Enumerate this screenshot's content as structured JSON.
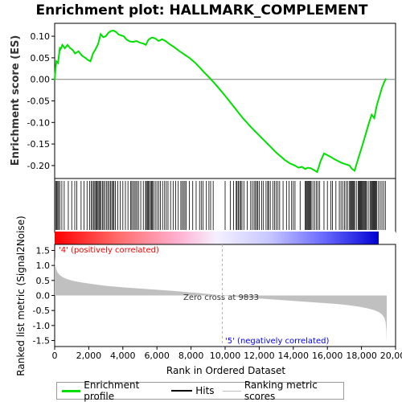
{
  "title": "Enrichment plot: HALLMARK_COMPLEMENT",
  "legend": {
    "items": [
      {
        "label": "Enrichment profile",
        "color": "#00e000"
      },
      {
        "label": "Hits",
        "color": "#000000"
      },
      {
        "label": "Ranking metric scores",
        "color": "#c0c0c0"
      }
    ]
  },
  "annotations": {
    "pos_label": "'4' (positively correlated)",
    "neg_label": "'5' (negatively correlated)",
    "zero_cross": "Zero cross at 9833",
    "pos_color": "#ff0000",
    "neg_color": "#0000ff"
  },
  "chart_data": [
    {
      "type": "line",
      "panel": "enrichment",
      "ylabel": "Enrichment score (ES)",
      "xlim": [
        0,
        20000
      ],
      "ylim": [
        -0.23,
        0.13
      ],
      "yticks": [
        "0.10",
        "0.05",
        "0.00",
        "-0.05",
        "-0.10",
        "-0.15",
        "-0.20"
      ],
      "ytick_values": [
        0.1,
        0.05,
        0.0,
        -0.05,
        -0.1,
        -0.15,
        -0.2
      ],
      "grid": false,
      "series": [
        {
          "color": "#00e000",
          "x": [
            0,
            50,
            100,
            200,
            300,
            350,
            450,
            600,
            750,
            900,
            1050,
            1200,
            1400,
            1600,
            1800,
            1950,
            2100,
            2250,
            2400,
            2550,
            2700,
            2850,
            3000,
            3150,
            3300,
            3450,
            3600,
            3750,
            3900,
            4050,
            4200,
            4400,
            4600,
            4800,
            5000,
            5200,
            5350,
            5500,
            5700,
            5900,
            6100,
            6300,
            6500,
            6700,
            7000,
            7300,
            7600,
            7900,
            8200,
            8500,
            8800,
            9100,
            9400,
            9833,
            10200,
            10600,
            11000,
            11500,
            12000,
            12500,
            13000,
            13500,
            13800,
            14100,
            14300,
            14500,
            14700,
            14850,
            15000,
            15200,
            15400,
            15600,
            15800,
            16000,
            16200,
            16400,
            16600,
            16800,
            17000,
            17150,
            17300,
            17450,
            17600,
            17800,
            18000,
            18150,
            18300,
            18450,
            18600,
            18750,
            18900,
            19050,
            19200,
            19350,
            19450
          ],
          "y": [
            -0.002,
            0.025,
            0.042,
            0.038,
            0.072,
            0.07,
            0.08,
            0.072,
            0.08,
            0.073,
            0.068,
            0.06,
            0.065,
            0.055,
            0.05,
            0.045,
            0.042,
            0.06,
            0.07,
            0.082,
            0.105,
            0.098,
            0.1,
            0.108,
            0.112,
            0.113,
            0.11,
            0.104,
            0.102,
            0.1,
            0.093,
            0.088,
            0.087,
            0.089,
            0.085,
            0.083,
            0.08,
            0.092,
            0.097,
            0.095,
            0.089,
            0.093,
            0.089,
            0.083,
            0.075,
            0.066,
            0.058,
            0.05,
            0.04,
            0.028,
            0.015,
            0.003,
            -0.01,
            -0.03,
            -0.048,
            -0.068,
            -0.088,
            -0.11,
            -0.13,
            -0.15,
            -0.17,
            -0.187,
            -0.195,
            -0.2,
            -0.205,
            -0.203,
            -0.208,
            -0.205,
            -0.206,
            -0.21,
            -0.215,
            -0.19,
            -0.172,
            -0.176,
            -0.18,
            -0.185,
            -0.189,
            -0.193,
            -0.196,
            -0.198,
            -0.2,
            -0.208,
            -0.212,
            -0.185,
            -0.16,
            -0.14,
            -0.12,
            -0.1,
            -0.082,
            -0.09,
            -0.06,
            -0.04,
            -0.02,
            -0.005,
            0.002
          ]
        }
      ]
    },
    {
      "type": "scatter",
      "panel": "hits",
      "description_color": "#000000",
      "ranks": [
        60,
        120,
        180,
        230,
        300,
        420,
        560,
        800,
        1000,
        1180,
        1300,
        1550,
        1720,
        1900,
        2050,
        2150,
        2220,
        2300,
        2360,
        2420,
        2480,
        2540,
        2600,
        2650,
        2720,
        2800,
        2870,
        2950,
        3050,
        3120,
        3200,
        3280,
        3350,
        3420,
        3480,
        3560,
        3700,
        3850,
        4000,
        4150,
        4300,
        4450,
        4520,
        4600,
        4680,
        4760,
        4840,
        4920,
        5050,
        5200,
        5330,
        5380,
        5440,
        5500,
        5560,
        5620,
        5680,
        5740,
        5800,
        5900,
        6000,
        6100,
        6200,
        6330,
        6450,
        6550,
        6650,
        6800,
        6950,
        7100,
        7250,
        7400,
        7480,
        7560,
        7640,
        7720,
        7900,
        8100,
        8300,
        8500,
        8600,
        8700,
        8900,
        9050,
        9150,
        9300,
        10000,
        10300,
        10500,
        10650,
        10700,
        10780,
        10850,
        10920,
        10990,
        11100,
        11300,
        11500,
        11600,
        11700,
        11780,
        11850,
        11920,
        12000,
        12150,
        12250,
        12400,
        12500,
        12550,
        12650,
        12800,
        12900,
        13000,
        13100,
        13200,
        13400,
        13600,
        13750,
        13900,
        14000,
        14100,
        14400,
        14700,
        14750,
        14800,
        14850,
        14900,
        14950,
        15000,
        15050,
        15150,
        15250,
        15350,
        15450,
        15550,
        15800,
        16000,
        16200,
        16300,
        16500,
        16700,
        16800,
        16900,
        17000,
        17100,
        17200,
        17300,
        17350,
        17400,
        17450,
        17500,
        17550,
        17600,
        17700,
        17800,
        17850,
        17900,
        17950,
        18000,
        18050,
        18100,
        18150,
        18200,
        18250,
        18300,
        18400,
        18500,
        18550,
        18600,
        18650,
        18700,
        18750,
        18800,
        18850,
        18900,
        19000,
        19100,
        19200,
        19300,
        19400
      ]
    },
    {
      "type": "heatmap",
      "panel": "ranking-bar",
      "colors_from_to": [
        "#ff0000",
        "#ffffff",
        "#0000ff"
      ]
    },
    {
      "type": "area",
      "panel": "ranked-list",
      "ylabel": "Ranked list metric (Signal2Noise)",
      "xlabel": "Rank in Ordered Dataset",
      "xlim": [
        0,
        20000
      ],
      "ylim": [
        -1.7,
        1.7
      ],
      "xticks": [
        "0",
        "2,000",
        "4,000",
        "6,000",
        "8,000",
        "10,000",
        "12,000",
        "14,000",
        "16,000",
        "18,000",
        "20,000"
      ],
      "xtick_values": [
        0,
        2000,
        4000,
        6000,
        8000,
        10000,
        12000,
        14000,
        16000,
        18000,
        20000
      ],
      "yticks": [
        "1.5",
        "1.0",
        "0.5",
        "0.0",
        "-0.5",
        "-1.0",
        "-1.5"
      ],
      "ytick_values": [
        1.5,
        1.0,
        0.5,
        0.0,
        -0.5,
        -1.0,
        -1.5
      ],
      "zero_cross": 9833,
      "series": [
        {
          "color": "#c0c0c0",
          "x": [
            0,
            30,
            80,
            150,
            300,
            500,
            800,
            1200,
            1600,
            2000,
            2500,
            3000,
            4000,
            5000,
            6000,
            7000,
            8000,
            9000,
            9833,
            10500,
            11500,
            12500,
            13500,
            14500,
            15500,
            16500,
            17200,
            17800,
            18300,
            18700,
            19000,
            19200,
            19350,
            19420,
            19460,
            19480
          ],
          "y": [
            1.3,
            1.05,
            0.9,
            0.78,
            0.68,
            0.6,
            0.53,
            0.47,
            0.43,
            0.4,
            0.36,
            0.32,
            0.27,
            0.23,
            0.19,
            0.15,
            0.1,
            0.05,
            0.0,
            -0.04,
            -0.08,
            -0.12,
            -0.16,
            -0.2,
            -0.24,
            -0.28,
            -0.32,
            -0.37,
            -0.42,
            -0.48,
            -0.55,
            -0.63,
            -0.75,
            -0.9,
            -1.2,
            -1.6
          ]
        }
      ]
    }
  ]
}
